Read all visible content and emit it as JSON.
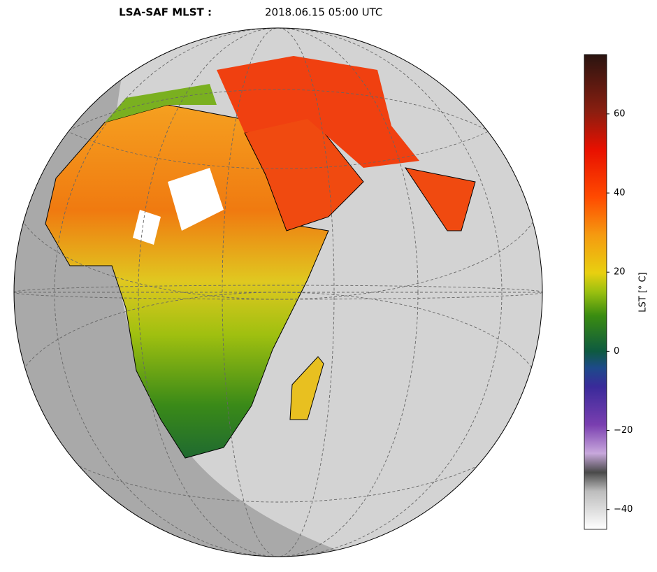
{
  "header": {
    "title_bold": "LSA-SAF MLST :",
    "title_date": "2018.06.15 05:00 UTC"
  },
  "colorbar": {
    "label": "LST [° C]",
    "ylim": [
      -45,
      75
    ],
    "yticks": [
      {
        "value": -40,
        "label": "−40"
      },
      {
        "value": -20,
        "label": "−20"
      },
      0,
      20,
      40,
      60
    ]
  }
}
